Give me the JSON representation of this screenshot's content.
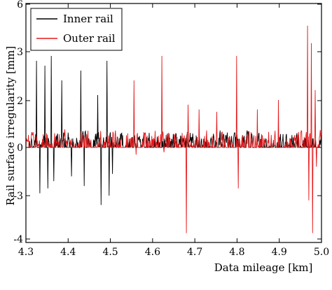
{
  "chart_data": {
    "type": "line",
    "title": "",
    "xlabel": "Data mileage [km]",
    "ylabel": "Rail surface irregularity [mm]",
    "xlim": [
      4.3,
      5.0
    ],
    "ylim": [
      -4,
      6
    ],
    "x_ticks": [
      "4.3",
      "4.4",
      "4.5",
      "4.6",
      "4.7",
      "4.8",
      "4.9",
      "5.0"
    ],
    "y_ticks": [
      "6",
      "3",
      "2",
      "1",
      "0",
      "-1",
      "-3",
      "-4"
    ],
    "grid": false,
    "legend_position": "top-left",
    "series": [
      {
        "name": "Inner rail",
        "color": "#000000",
        "noise_amplitude": 0.55,
        "spikes": [
          {
            "x": 4.325,
            "y": 2.8
          },
          {
            "x": 4.333,
            "y": -2.9
          },
          {
            "x": 4.345,
            "y": 2.7
          },
          {
            "x": 4.352,
            "y": -2.7
          },
          {
            "x": 4.36,
            "y": 2.9
          },
          {
            "x": 4.366,
            "y": -2.4
          },
          {
            "x": 4.385,
            "y": 2.4
          },
          {
            "x": 4.408,
            "y": -2.2
          },
          {
            "x": 4.43,
            "y": 2.6
          },
          {
            "x": 4.438,
            "y": -2.6
          },
          {
            "x": 4.47,
            "y": 2.1
          },
          {
            "x": 4.478,
            "y": -3.2
          },
          {
            "x": 4.492,
            "y": 2.8
          },
          {
            "x": 4.497,
            "y": -3.0
          },
          {
            "x": 4.505,
            "y": -2.1
          }
        ]
      },
      {
        "name": "Outer rail",
        "color": "#e41a1c",
        "noise_amplitude": 0.6,
        "spikes": [
          {
            "x": 4.556,
            "y": 2.4
          },
          {
            "x": 4.561,
            "y": -1.3
          },
          {
            "x": 4.622,
            "y": 2.9
          },
          {
            "x": 4.627,
            "y": -1.2
          },
          {
            "x": 4.68,
            "y": -3.8
          },
          {
            "x": 4.684,
            "y": 1.8
          },
          {
            "x": 4.71,
            "y": 1.6
          },
          {
            "x": 4.752,
            "y": 1.5
          },
          {
            "x": 4.799,
            "y": 2.9
          },
          {
            "x": 4.803,
            "y": -2.7
          },
          {
            "x": 4.848,
            "y": 1.6
          },
          {
            "x": 4.898,
            "y": 2.0
          },
          {
            "x": 4.967,
            "y": 4.6
          },
          {
            "x": 4.97,
            "y": -3.1
          },
          {
            "x": 4.976,
            "y": 3.5
          },
          {
            "x": 4.979,
            "y": -3.8
          },
          {
            "x": 4.985,
            "y": 2.2
          },
          {
            "x": 4.988,
            "y": -1.8
          }
        ]
      }
    ]
  }
}
